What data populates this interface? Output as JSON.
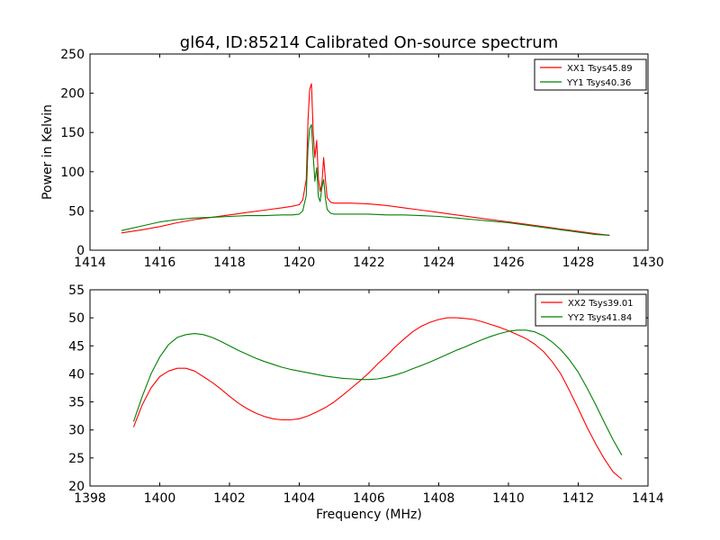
{
  "figure": {
    "title": "gl64, ID:85214 Calibrated On-source spectrum"
  },
  "chart_data": [
    {
      "type": "line",
      "title": "gl64, ID:85214 Calibrated On-source spectrum",
      "xlabel": "",
      "ylabel": "Power in Kelvin",
      "xlim": [
        1414,
        1430
      ],
      "ylim": [
        0,
        250
      ],
      "xticks": [
        1414,
        1416,
        1418,
        1420,
        1422,
        1424,
        1426,
        1428,
        1430
      ],
      "yticks": [
        0,
        50,
        100,
        150,
        200,
        250
      ],
      "grid": false,
      "legend_position": "top-right",
      "series": [
        {
          "name": "XX1 Tsys45.89",
          "color": "#ff0000",
          "x": [
            1414.9,
            1415.5,
            1416.0,
            1416.5,
            1417.0,
            1417.5,
            1418.0,
            1418.5,
            1419.0,
            1419.5,
            1419.8,
            1420.0,
            1420.1,
            1420.2,
            1420.25,
            1420.3,
            1420.35,
            1420.4,
            1420.45,
            1420.5,
            1420.55,
            1420.6,
            1420.65,
            1420.7,
            1420.75,
            1420.8,
            1420.9,
            1421.0,
            1421.5,
            1422.0,
            1422.5,
            1423.0,
            1423.5,
            1424.0,
            1424.5,
            1425.0,
            1425.5,
            1426.0,
            1426.5,
            1427.0,
            1427.5,
            1428.0,
            1428.5,
            1428.9
          ],
          "y": [
            22,
            26,
            30,
            35,
            39,
            42,
            45,
            48,
            51,
            54,
            56,
            58,
            64,
            90,
            165,
            205,
            212,
            150,
            118,
            140,
            90,
            75,
            85,
            118,
            90,
            67,
            61,
            60,
            60,
            59,
            57,
            54,
            51,
            48,
            45,
            42,
            39,
            36,
            33,
            30,
            27,
            24,
            21,
            19
          ]
        },
        {
          "name": "YY1 Tsys40.36",
          "color": "#008000",
          "x": [
            1414.9,
            1415.5,
            1416.0,
            1416.5,
            1417.0,
            1417.5,
            1418.0,
            1418.5,
            1419.0,
            1419.5,
            1419.8,
            1420.0,
            1420.1,
            1420.2,
            1420.25,
            1420.3,
            1420.35,
            1420.4,
            1420.45,
            1420.5,
            1420.55,
            1420.6,
            1420.65,
            1420.7,
            1420.75,
            1420.8,
            1420.9,
            1421.0,
            1421.5,
            1422.0,
            1422.5,
            1423.0,
            1423.5,
            1424.0,
            1424.5,
            1425.0,
            1425.5,
            1426.0,
            1426.5,
            1427.0,
            1427.5,
            1428.0,
            1428.5,
            1428.9
          ],
          "y": [
            25,
            31,
            36,
            39,
            41,
            42,
            43,
            44,
            44,
            45,
            45,
            46,
            50,
            70,
            130,
            155,
            160,
            120,
            88,
            105,
            68,
            62,
            80,
            90,
            66,
            52,
            47,
            46,
            46,
            46,
            45,
            45,
            44,
            43,
            41,
            39,
            37,
            35,
            32,
            29,
            26,
            23,
            20,
            19
          ]
        }
      ]
    },
    {
      "type": "line",
      "title": "",
      "xlabel": "Frequency (MHz)",
      "ylabel": "",
      "xlim": [
        1398,
        1414
      ],
      "ylim": [
        20,
        55
      ],
      "xticks": [
        1398,
        1400,
        1402,
        1404,
        1406,
        1408,
        1410,
        1412,
        1414
      ],
      "yticks": [
        20,
        25,
        30,
        35,
        40,
        45,
        50,
        55
      ],
      "grid": false,
      "legend_position": "top-right",
      "series": [
        {
          "name": "XX2 Tsys39.01",
          "color": "#ff0000",
          "x": [
            1399.25,
            1399.5,
            1399.75,
            1400.0,
            1400.25,
            1400.5,
            1400.75,
            1401.0,
            1401.25,
            1401.5,
            1401.75,
            1402.0,
            1402.25,
            1402.5,
            1402.75,
            1403.0,
            1403.25,
            1403.5,
            1403.75,
            1404.0,
            1404.25,
            1404.5,
            1404.75,
            1405.0,
            1405.25,
            1405.5,
            1405.75,
            1406.0,
            1406.25,
            1406.5,
            1406.75,
            1407.0,
            1407.25,
            1407.5,
            1407.75,
            1408.0,
            1408.25,
            1408.5,
            1408.75,
            1409.0,
            1409.25,
            1409.5,
            1409.75,
            1410.0,
            1410.25,
            1410.5,
            1410.75,
            1411.0,
            1411.25,
            1411.5,
            1411.75,
            1412.0,
            1412.25,
            1412.5,
            1412.75,
            1413.0,
            1413.25
          ],
          "y": [
            30.5,
            34.5,
            37.5,
            39.5,
            40.5,
            41.0,
            41.0,
            40.5,
            39.5,
            38.5,
            37.3,
            36.0,
            34.8,
            33.8,
            33.0,
            32.4,
            32.0,
            31.8,
            31.8,
            32.0,
            32.5,
            33.2,
            34.0,
            35.0,
            36.2,
            37.5,
            38.8,
            40.2,
            41.8,
            43.2,
            44.8,
            46.2,
            47.5,
            48.5,
            49.2,
            49.7,
            50.0,
            50.0,
            49.9,
            49.7,
            49.3,
            48.8,
            48.3,
            47.7,
            47.0,
            46.3,
            45.3,
            44.0,
            42.2,
            40.0,
            37.0,
            33.8,
            30.5,
            27.5,
            24.8,
            22.5,
            21.2
          ]
        },
        {
          "name": "YY2 Tsys41.84",
          "color": "#008000",
          "x": [
            1399.25,
            1399.5,
            1399.75,
            1400.0,
            1400.25,
            1400.5,
            1400.75,
            1401.0,
            1401.25,
            1401.5,
            1401.75,
            1402.0,
            1402.25,
            1402.5,
            1402.75,
            1403.0,
            1403.25,
            1403.5,
            1403.75,
            1404.0,
            1404.25,
            1404.5,
            1404.75,
            1405.0,
            1405.25,
            1405.5,
            1405.75,
            1406.0,
            1406.25,
            1406.5,
            1406.75,
            1407.0,
            1407.25,
            1407.5,
            1407.75,
            1408.0,
            1408.25,
            1408.5,
            1408.75,
            1409.0,
            1409.25,
            1409.5,
            1409.75,
            1410.0,
            1410.25,
            1410.5,
            1410.75,
            1411.0,
            1411.25,
            1411.5,
            1411.75,
            1412.0,
            1412.25,
            1412.5,
            1412.75,
            1413.0,
            1413.25
          ],
          "y": [
            31.5,
            36.0,
            40.0,
            43.0,
            45.2,
            46.5,
            47.0,
            47.2,
            47.0,
            46.5,
            45.8,
            45.0,
            44.2,
            43.5,
            42.8,
            42.2,
            41.7,
            41.2,
            40.8,
            40.5,
            40.2,
            39.9,
            39.6,
            39.4,
            39.2,
            39.1,
            39.0,
            39.0,
            39.1,
            39.4,
            39.8,
            40.3,
            40.9,
            41.5,
            42.1,
            42.8,
            43.5,
            44.2,
            44.8,
            45.5,
            46.1,
            46.7,
            47.2,
            47.6,
            47.8,
            47.8,
            47.5,
            46.8,
            45.7,
            44.3,
            42.5,
            40.3,
            37.5,
            34.5,
            31.3,
            28.2,
            25.5
          ]
        }
      ]
    }
  ]
}
